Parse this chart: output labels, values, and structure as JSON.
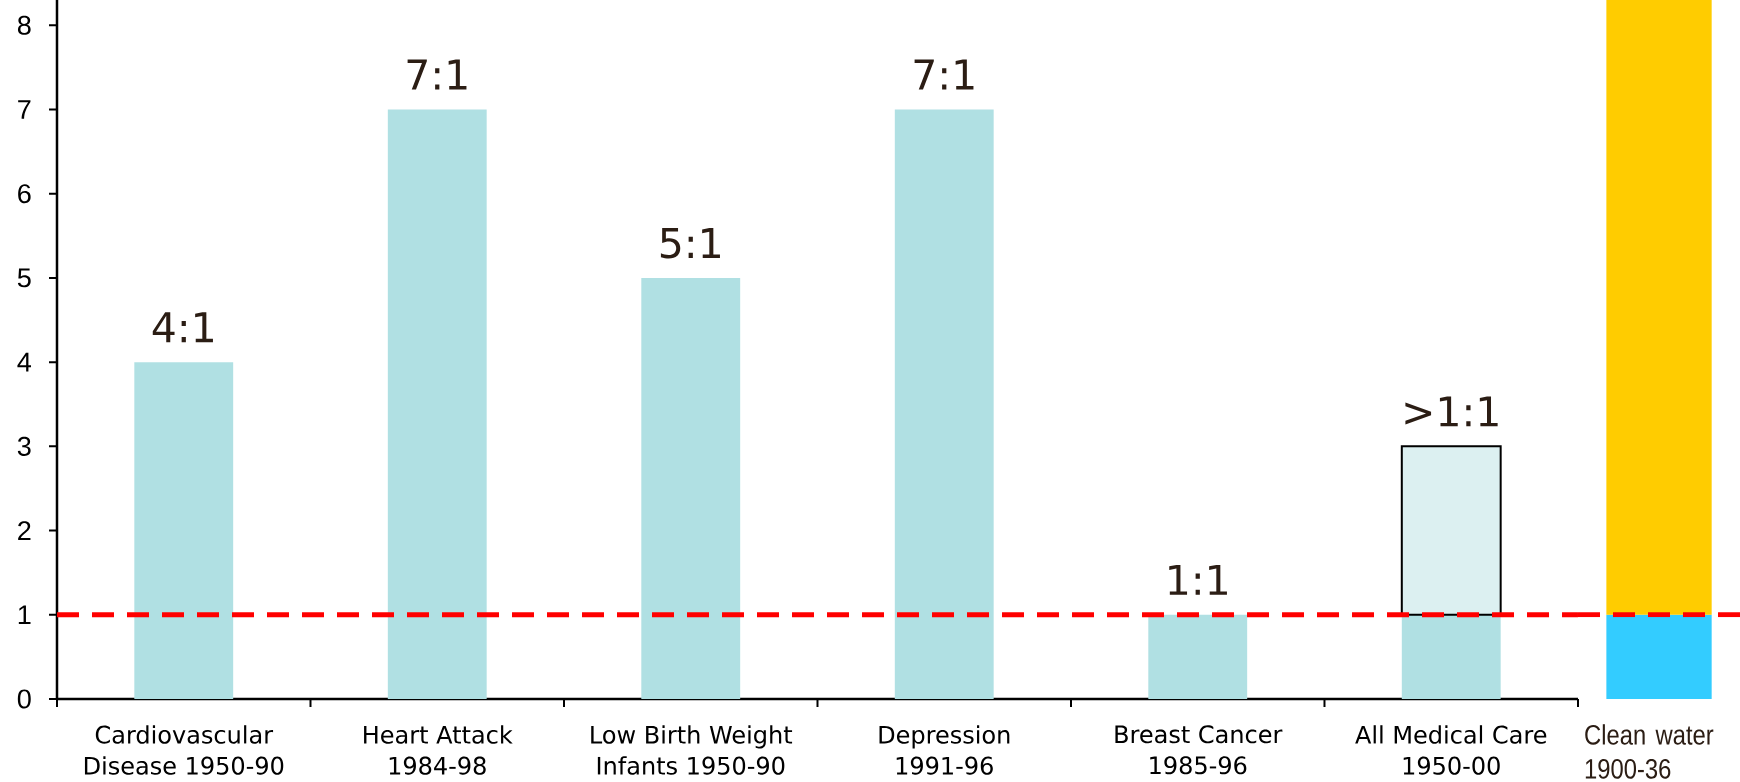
{
  "chart_data": [
    {
      "type": "bar",
      "stacked": true,
      "categories": [
        "Cardiovascular Disease 1950-90",
        "Heart Attack 1984-98",
        "Low Birth Weight Infants 1950-90",
        "Depression 1991-96",
        "Breast Cancer 1985-96",
        "All Medical Care 1950-00"
      ],
      "series": [
        {
          "color": "#b0e0e3",
          "values": [
            4,
            7,
            5,
            7,
            1,
            1
          ],
          "value_labels": [
            "4:1",
            "7:1",
            "5:1",
            "7:1",
            "1:1",
            null
          ]
        },
        {
          "color": "#dcf0f1",
          "line_style": "solid",
          "values": [
            null,
            null,
            null,
            null,
            null,
            2
          ],
          "value_labels": [
            null,
            null,
            null,
            null,
            null,
            ">1:1"
          ]
        }
      ],
      "ylim": [
        0,
        8.3
      ],
      "yticks": [
        0,
        1,
        2,
        3,
        4,
        5,
        6,
        7,
        8
      ],
      "ref_lines": [
        {
          "axis": "y",
          "value": 1,
          "color": "#ff0000",
          "line_style": "dashed"
        }
      ]
    },
    {
      "type": "bar",
      "stacked": true,
      "categories": [
        "Clean water 1900-36"
      ],
      "series": [
        {
          "color": "#33ccff",
          "values": [
            1
          ]
        },
        {
          "color": "#ffcc00",
          "values": [
            7.3
          ]
        }
      ],
      "ylim": [
        0,
        8.3
      ],
      "tick_labels": "x",
      "ref_lines": [
        {
          "axis": "y",
          "value": 1,
          "color": "#ff0000",
          "line_style": "dashed"
        }
      ]
    }
  ]
}
